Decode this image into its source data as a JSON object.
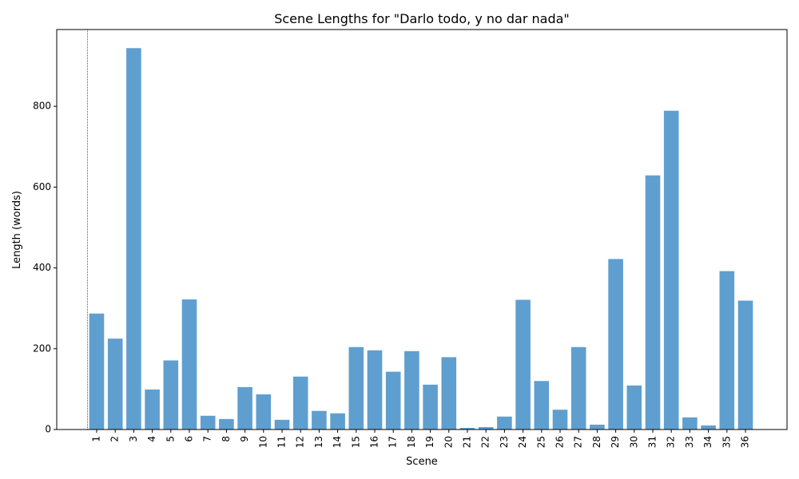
{
  "chart_data": {
    "type": "bar",
    "title": "Scene Lengths for \"Darlo todo, y no dar nada\"",
    "xlabel": "Scene",
    "ylabel": "Length (words)",
    "categories": [
      "1",
      "2",
      "3",
      "4",
      "5",
      "6",
      "7",
      "8",
      "9",
      "10",
      "11",
      "12",
      "13",
      "14",
      "15",
      "16",
      "17",
      "18",
      "19",
      "20",
      "21",
      "22",
      "23",
      "24",
      "25",
      "26",
      "27",
      "28",
      "29",
      "30",
      "31",
      "32",
      "33",
      "34",
      "35",
      "36"
    ],
    "values": [
      287,
      225,
      944,
      99,
      171,
      322,
      34,
      26,
      105,
      87,
      24,
      131,
      46,
      40,
      204,
      196,
      143,
      194,
      111,
      179,
      4,
      6,
      32,
      321,
      120,
      49,
      204,
      12,
      422,
      109,
      629,
      789,
      30,
      10,
      392,
      319
    ],
    "ylim": [
      0,
      990
    ],
    "yticks": [
      0,
      200,
      400,
      600,
      800
    ],
    "bar_color": "#5f9fcf",
    "reference_line_color": "#333333"
  }
}
